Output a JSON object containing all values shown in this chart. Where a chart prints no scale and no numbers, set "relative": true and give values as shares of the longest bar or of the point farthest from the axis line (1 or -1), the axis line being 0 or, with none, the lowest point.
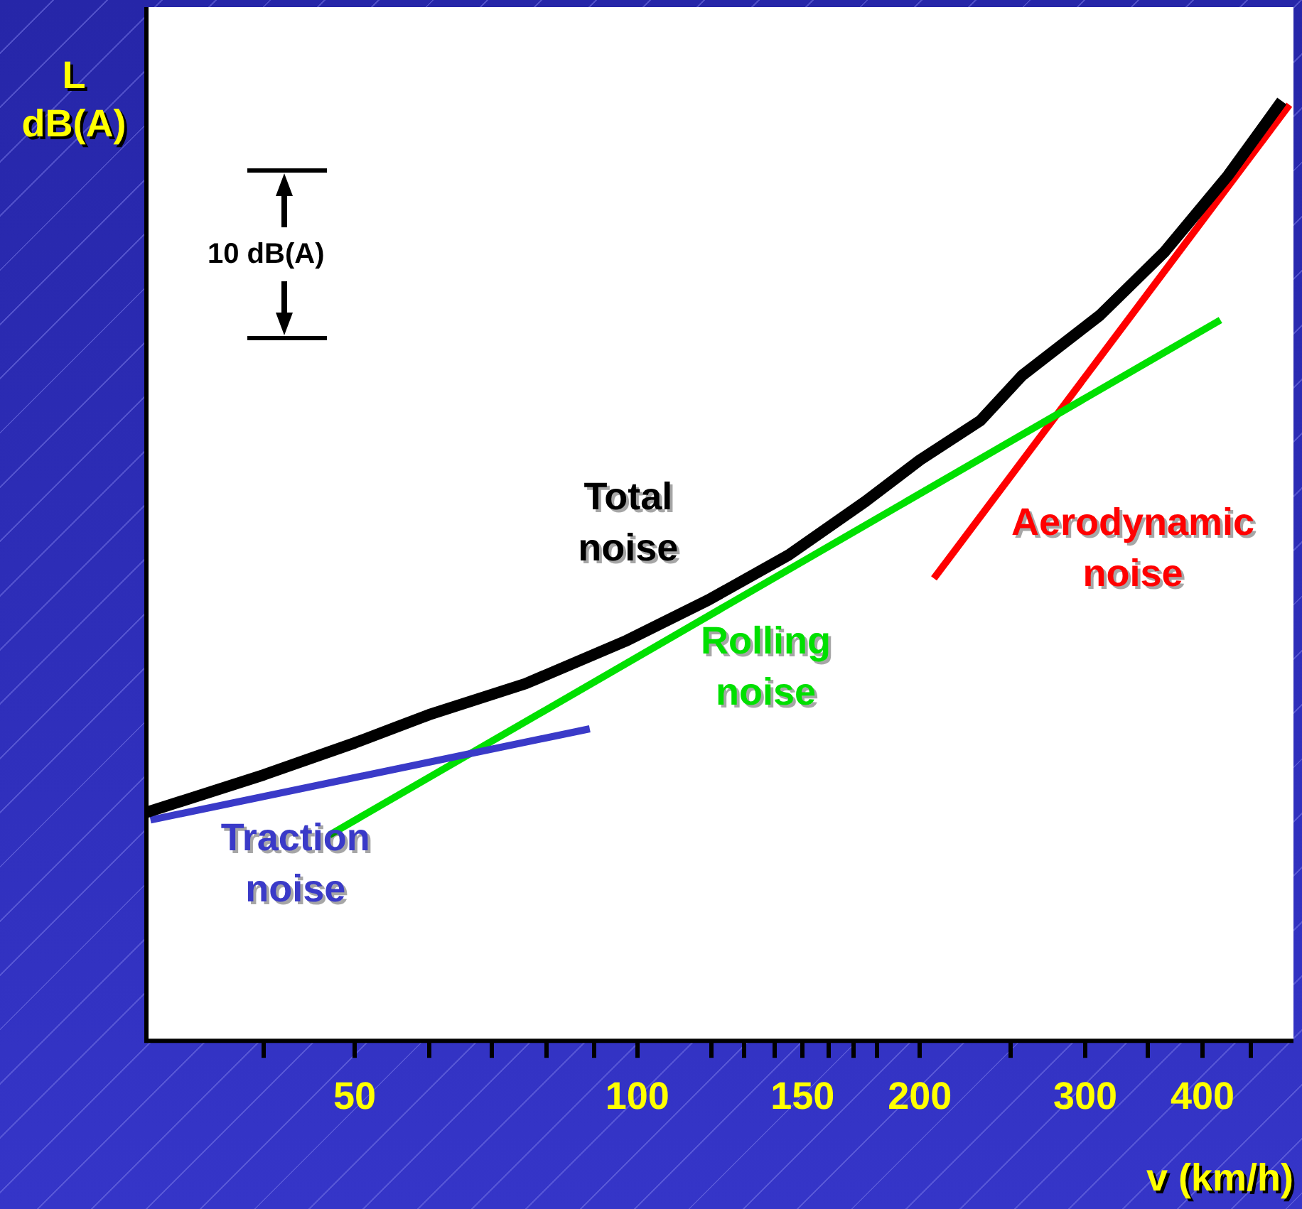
{
  "chart_data": {
    "type": "line",
    "relative": true,
    "log": "x",
    "xlabel": "v (km/h)",
    "ylabel": "L\ndB(A)",
    "annotations": [
      "10 dB(A)"
    ],
    "xlim": [
      30,
      500
    ],
    "xticks": [
      {
        "value": 40,
        "label": null
      },
      50,
      {
        "value": 60,
        "label": null
      },
      {
        "value": 70,
        "label": null
      },
      {
        "value": 80,
        "label": null
      },
      {
        "value": 90,
        "label": null
      },
      100,
      {
        "value": 120,
        "label": null
      },
      {
        "value": 130,
        "label": null
      },
      {
        "value": 140,
        "label": null
      },
      150,
      {
        "value": 160,
        "label": null
      },
      {
        "value": 170,
        "label": null
      },
      {
        "value": 180,
        "label": null
      },
      200,
      {
        "value": 250,
        "label": null
      },
      300,
      {
        "value": 350,
        "label": null
      },
      400,
      {
        "value": 450,
        "label": null
      }
    ],
    "legend": false,
    "grid": false,
    "marker": "none",
    "line_style": "solid",
    "series": [
      {
        "name": "Total\nnoise",
        "color": "#000000",
        "x": [
          30,
          40,
          50,
          60,
          76,
          97,
          119,
          145,
          175,
          200,
          232,
          257,
          311,
          364,
          426,
          486
        ],
        "values": [
          0.243,
          0.283,
          0.317,
          0.347,
          0.38,
          0.425,
          0.469,
          0.517,
          0.574,
          0.618,
          0.66,
          0.708,
          0.772,
          0.839,
          0.921,
          1.0
        ]
      },
      {
        "name": "Traction\nnoise",
        "color": "#3a3ac8",
        "x": [
          30.3,
          89
        ],
        "values": [
          0.235,
          0.332
        ]
      },
      {
        "name": "Rolling\nnoise",
        "color": "#00e000",
        "x": [
          47,
          418
        ],
        "values": [
          0.219,
          0.767
        ]
      },
      {
        "name": "Aerodynamic\nnoise",
        "color": "#ff0000",
        "x": [
          207,
          495
        ],
        "values": [
          0.492,
          0.996
        ]
      }
    ]
  }
}
